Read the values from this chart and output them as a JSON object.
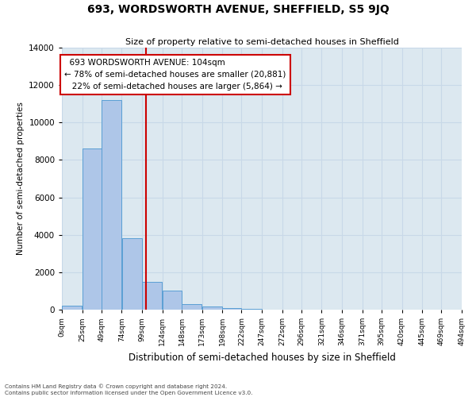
{
  "title": "693, WORDSWORTH AVENUE, SHEFFIELD, S5 9JQ",
  "subtitle": "Size of property relative to semi-detached houses in Sheffield",
  "xlabel": "Distribution of semi-detached houses by size in Sheffield",
  "ylabel": "Number of semi-detached properties",
  "property_size": 104,
  "property_label": "693 WORDSWORTH AVENUE: 104sqm",
  "pct_smaller": 78,
  "count_smaller": 20881,
  "pct_larger": 22,
  "count_larger": 5864,
  "bin_edges": [
    0,
    25,
    49,
    74,
    99,
    124,
    148,
    173,
    198,
    222,
    247,
    272,
    296,
    321,
    346,
    371,
    395,
    420,
    445,
    469,
    494
  ],
  "bar_heights": [
    200,
    8600,
    11200,
    3800,
    1500,
    1000,
    300,
    150,
    80,
    30,
    10,
    0,
    0,
    0,
    0,
    0,
    0,
    0,
    0,
    0
  ],
  "bar_color": "#aec6e8",
  "bar_edgecolor": "#5a9fd4",
  "line_color": "#cc0000",
  "annotation_box_edgecolor": "#cc0000",
  "tick_labels": [
    "0sqm",
    "25sqm",
    "49sqm",
    "74sqm",
    "99sqm",
    "124sqm",
    "148sqm",
    "173sqm",
    "198sqm",
    "222sqm",
    "247sqm",
    "272sqm",
    "296sqm",
    "321sqm",
    "346sqm",
    "371sqm",
    "395sqm",
    "420sqm",
    "445sqm",
    "469sqm",
    "494sqm"
  ],
  "ylim": [
    0,
    14000
  ],
  "yticks": [
    0,
    2000,
    4000,
    6000,
    8000,
    10000,
    12000,
    14000
  ],
  "grid_color": "#c8d8e8",
  "background_color": "#dce8f0",
  "footnote": "Contains HM Land Registry data © Crown copyright and database right 2024.\nContains public sector information licensed under the Open Government Licence v3.0."
}
